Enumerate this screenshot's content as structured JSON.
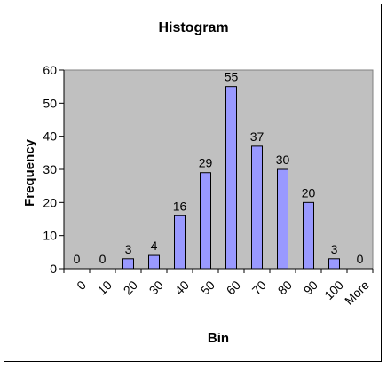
{
  "chart_data": {
    "type": "bar",
    "title": "Histogram",
    "xlabel": "Bin",
    "ylabel": "Frequency",
    "categories": [
      "0",
      "10",
      "20",
      "30",
      "40",
      "50",
      "60",
      "70",
      "80",
      "90",
      "100",
      "More"
    ],
    "values": [
      0,
      0,
      3,
      4,
      16,
      29,
      55,
      37,
      30,
      20,
      3,
      0
    ],
    "ylim": [
      0,
      60
    ],
    "yticks": [
      0,
      10,
      20,
      30,
      40,
      50,
      60
    ],
    "grid": false,
    "data_labels": true,
    "colors": {
      "plot_background": "#c0c0c0",
      "bar_fill": "#9999ff",
      "bar_stroke": "#000000"
    }
  }
}
